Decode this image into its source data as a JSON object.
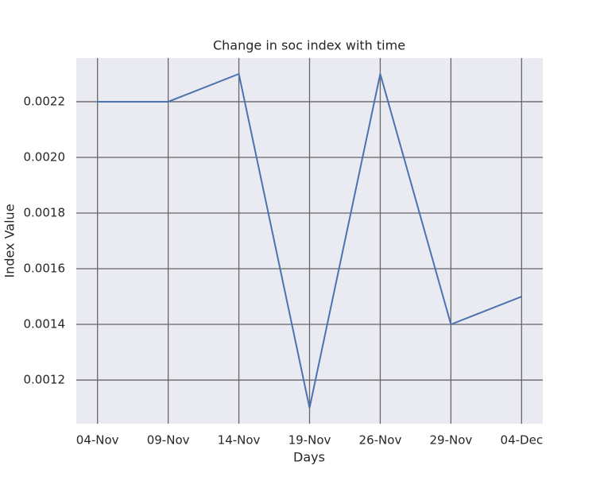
{
  "chart_data": {
    "type": "line",
    "title": "Change in soc index with time",
    "x_label": "Days",
    "y_label": "Index Value",
    "categories": [
      "04-Nov",
      "09-Nov",
      "14-Nov",
      "19-Nov",
      "26-Nov",
      "29-Nov",
      "04-Dec"
    ],
    "values": [
      0.0022,
      0.0022,
      0.0023,
      0.0011,
      0.0023,
      0.0014,
      0.0015
    ],
    "color": "#4c72b0",
    "ylim": [
      0.001043,
      0.002357
    ],
    "yticks": [
      0.0012,
      0.0014,
      0.0016,
      0.0018,
      {
        "value": 0.002,
        "label": "0.0020"
      },
      0.0022
    ],
    "grid": true
  }
}
